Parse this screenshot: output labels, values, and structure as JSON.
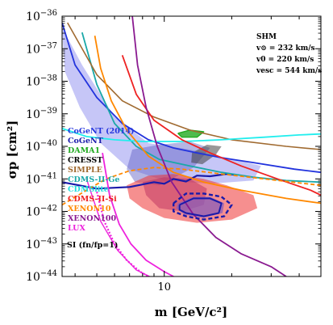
{
  "chart_data": {
    "type": "line",
    "xlabel": "m [GeV/c²]",
    "ylabel": "σp [cm²]",
    "x_scale": "log",
    "y_scale": "log",
    "xlim": [
      3.5,
      50
    ],
    "ylim": [
      1e-44,
      1e-36
    ],
    "x_tick_labels": [
      {
        "value": 10,
        "text": "10"
      }
    ],
    "y_tick_labels": [
      {
        "value": -36,
        "base": "10",
        "exp": "−36"
      },
      {
        "value": -37,
        "base": "10",
        "exp": "−37"
      },
      {
        "value": -38,
        "base": "10",
        "exp": "−38"
      },
      {
        "value": -39,
        "base": "10",
        "exp": "−39"
      },
      {
        "value": -40,
        "base": "10",
        "exp": "−40"
      },
      {
        "value": -41,
        "base": "10",
        "exp": "−41"
      },
      {
        "value": -42,
        "base": "10",
        "exp": "−42"
      },
      {
        "value": -43,
        "base": "10",
        "exp": "−43"
      },
      {
        "value": -44,
        "base": "10",
        "exp": "−44"
      }
    ],
    "annotation": {
      "title": "SHM",
      "lines": [
        "v⊙ = 232 km/s",
        "v0 = 220 km/s",
        "vesc = 544 km/s"
      ]
    },
    "footer_label": "SI (fn/fp=1)",
    "regions": [
      {
        "name": "CoGeNT (2014)",
        "color": "#8080ee",
        "opacity": 0.45,
        "points": [
          [
            3.5,
            -36.35
          ],
          [
            4.3,
            -37.5
          ],
          [
            6,
            -39.1
          ],
          [
            8.5,
            -39.9
          ],
          [
            13,
            -40.1
          ],
          [
            19,
            -40.35
          ],
          [
            27,
            -40.6
          ],
          [
            25,
            -41.05
          ],
          [
            16,
            -41.15
          ],
          [
            10,
            -41.05
          ],
          [
            7,
            -40.7
          ],
          [
            5.2,
            -39.9
          ],
          [
            4.2,
            -38.8
          ],
          [
            3.6,
            -37.7
          ]
        ]
      },
      {
        "name": "CoGeNT",
        "color": "#5a5ac0",
        "opacity": 0.45,
        "points": [
          [
            7.2,
            -40.1
          ],
          [
            9.5,
            -39.95
          ],
          [
            13,
            -39.85
          ],
          [
            16,
            -40.05
          ],
          [
            13.5,
            -40.65
          ],
          [
            9.5,
            -41.2
          ],
          [
            7.4,
            -41.1
          ],
          [
            6.8,
            -40.7
          ]
        ]
      },
      {
        "name": "DAMA1",
        "color": "#22aa22",
        "opacity": 0.8,
        "points": [
          [
            11.5,
            -39.6
          ],
          [
            13,
            -39.5
          ],
          [
            15,
            -39.55
          ],
          [
            14,
            -39.72
          ],
          [
            12,
            -39.72
          ]
        ]
      },
      {
        "name": "CDMS-II-Si",
        "color": "#ee3333",
        "opacity": 0.55,
        "points": [
          [
            6.8,
            -41.2
          ],
          [
            8.5,
            -40.9
          ],
          [
            11,
            -40.85
          ],
          [
            15,
            -41.0
          ],
          [
            19,
            -41.2
          ],
          [
            25,
            -41.5
          ],
          [
            26,
            -41.9
          ],
          [
            20,
            -42.25
          ],
          [
            14,
            -42.35
          ],
          [
            10,
            -42.2
          ],
          [
            8,
            -41.9
          ],
          [
            7,
            -41.6
          ]
        ]
      },
      {
        "name": "CDMS-II-Si",
        "color": "#bb3060",
        "opacity": 0.5,
        "points": [
          [
            8,
            -41.1
          ],
          [
            10,
            -40.95
          ],
          [
            13,
            -41.0
          ],
          [
            15.5,
            -41.3
          ],
          [
            15,
            -41.8
          ],
          [
            12,
            -42.0
          ],
          [
            9.5,
            -41.9
          ],
          [
            8.3,
            -41.5
          ]
        ]
      },
      {
        "name": "CDMS-II-Si",
        "color": "#444444",
        "opacity": 0.55,
        "points": [
          [
            13.3,
            -40.2
          ],
          [
            15.5,
            -39.95
          ],
          [
            18,
            -40.0
          ],
          [
            17,
            -40.25
          ],
          [
            14.8,
            -40.55
          ],
          [
            13.2,
            -40.5
          ]
        ]
      },
      {
        "name": "CDMS-II-Si",
        "color": "#8a5eb8",
        "opacity": 0.75,
        "points": [
          [
            11.5,
            -41.75
          ],
          [
            13.5,
            -41.55
          ],
          [
            16,
            -41.55
          ],
          [
            18.5,
            -41.75
          ],
          [
            18.2,
            -42.05
          ],
          [
            15,
            -42.2
          ],
          [
            12.3,
            -42.1
          ],
          [
            11.3,
            -41.9
          ]
        ]
      }
    ],
    "series": [
      {
        "name": "CoGeNT (2014)",
        "color": "#2233dd",
        "width": 1.8,
        "dash": "",
        "points": [
          [
            3.5,
            -36.2
          ],
          [
            4,
            -37.5
          ],
          [
            5,
            -38.5
          ],
          [
            6.5,
            -39.3
          ],
          [
            8.5,
            -39.8
          ],
          [
            11,
            -40.05
          ],
          [
            14,
            -40.2
          ],
          [
            18,
            -40.35
          ],
          [
            25,
            -40.5
          ],
          [
            38,
            -40.7
          ],
          [
            50,
            -40.8
          ]
        ]
      },
      {
        "name": "CoGeNT",
        "color": "#1a1aaa",
        "width": 2.2,
        "dash": "",
        "points": [
          [
            3.5,
            -41.1
          ],
          [
            5,
            -41.3
          ],
          [
            7,
            -41.25
          ],
          [
            9,
            -41.1
          ],
          [
            10,
            -41.15
          ],
          [
            11,
            -41.0
          ],
          [
            12.5,
            -41.08
          ],
          [
            14,
            -40.9
          ],
          [
            16,
            -40.92
          ],
          [
            19,
            -40.85
          ],
          [
            21,
            -40.88
          ]
        ]
      },
      {
        "name": "DAMA1",
        "color": "#22aa22",
        "width": 1.4,
        "dash": "",
        "points": [
          [
            11.5,
            -39.6
          ],
          [
            13,
            -39.5
          ],
          [
            15,
            -39.55
          ],
          [
            14,
            -39.72
          ],
          [
            12,
            -39.72
          ],
          [
            11.5,
            -39.6
          ]
        ]
      },
      {
        "name": "CDMS-II-Ge",
        "color": "#1aa8a8",
        "width": 1.8,
        "dash": "",
        "points": [
          [
            4.3,
            -36.5
          ],
          [
            5,
            -38.1
          ],
          [
            6,
            -39.3
          ],
          [
            7.5,
            -40.0
          ],
          [
            9.5,
            -40.4
          ],
          [
            13,
            -40.6
          ],
          [
            18,
            -40.8
          ],
          [
            25,
            -40.95
          ],
          [
            35,
            -41.05
          ],
          [
            50,
            -41.1
          ]
        ]
      },
      {
        "name": "CRESST",
        "color": "#000000",
        "width": 1.3,
        "dash": "",
        "points": [
          [
            3.5,
            -42.2
          ]
        ]
      },
      {
        "name": "SIMPLE",
        "color": "#a06a30",
        "width": 1.6,
        "dash": "",
        "points": [
          [
            3.7,
            -36.2
          ],
          [
            5,
            -37.8
          ],
          [
            6.5,
            -38.6
          ],
          [
            9,
            -39.1
          ],
          [
            13,
            -39.5
          ],
          [
            20,
            -39.8
          ],
          [
            35,
            -40.0
          ],
          [
            50,
            -40.1
          ]
        ]
      },
      {
        "name": "CDMSlite",
        "color": "#22eeee",
        "width": 1.8,
        "dash": "",
        "points": [
          [
            3.5,
            -39.45
          ],
          [
            4.5,
            -39.7
          ],
          [
            6,
            -39.8
          ],
          [
            8,
            -39.85
          ],
          [
            12,
            -39.85
          ],
          [
            18,
            -39.8
          ],
          [
            28,
            -39.72
          ],
          [
            40,
            -39.65
          ],
          [
            50,
            -39.62
          ]
        ]
      },
      {
        "name": "CDMS-II-Si",
        "color": "#ee2222",
        "width": 1.8,
        "dash": "",
        "points": [
          [
            6.5,
            -37.2
          ],
          [
            7.5,
            -38.4
          ],
          [
            9,
            -39.2
          ],
          [
            12,
            -39.8
          ],
          [
            16,
            -40.2
          ],
          [
            22,
            -40.6
          ],
          [
            32,
            -41.0
          ],
          [
            45,
            -41.35
          ],
          [
            50,
            -41.5
          ]
        ]
      },
      {
        "name": "XENON10",
        "color": "#ff8800",
        "width": 1.8,
        "dash": "",
        "points": [
          [
            4.9,
            -36.6
          ],
          [
            5.2,
            -37.6
          ],
          [
            5.8,
            -38.6
          ],
          [
            6.8,
            -39.5
          ],
          [
            8.5,
            -40.3
          ],
          [
            11,
            -40.8
          ],
          [
            15,
            -41.1
          ],
          [
            22,
            -41.35
          ],
          [
            35,
            -41.6
          ],
          [
            50,
            -41.75
          ]
        ]
      },
      {
        "name": "XENON10",
        "color": "#ff8800",
        "width": 1.8,
        "dash": "5,3",
        "points": [
          [
            3.5,
            -41.8
          ],
          [
            4.5,
            -41.35
          ],
          [
            5.5,
            -41.0
          ],
          [
            7,
            -40.75
          ],
          [
            9,
            -40.65
          ],
          [
            12,
            -40.7
          ],
          [
            18,
            -40.85
          ],
          [
            28,
            -41.0
          ],
          [
            50,
            -41.2
          ]
        ]
      },
      {
        "name": "XENON100",
        "color": "#8a1a90",
        "width": 1.8,
        "dash": "",
        "points": [
          [
            7.2,
            -36
          ],
          [
            7.6,
            -37.5
          ],
          [
            8.3,
            -38.8
          ],
          [
            9.3,
            -40
          ],
          [
            10.8,
            -41.1
          ],
          [
            13.5,
            -42.1
          ],
          [
            17,
            -42.8
          ],
          [
            22,
            -43.3
          ],
          [
            30,
            -43.7
          ],
          [
            35,
            -44
          ]
        ]
      },
      {
        "name": "LUX",
        "color": "#ee22dd",
        "width": 1.8,
        "dash": "",
        "points": [
          [
            5.3,
            -40.2
          ],
          [
            5.7,
            -41.5
          ],
          [
            6.3,
            -42.4
          ],
          [
            7.1,
            -43.0
          ],
          [
            8.3,
            -43.5
          ],
          [
            10,
            -43.85
          ],
          [
            11,
            -44
          ]
        ]
      },
      {
        "name": "LUX",
        "color": "#ee22dd",
        "width": 2.2,
        "dash": "2,2",
        "points": [
          [
            5.0,
            -41.4
          ],
          [
            5.4,
            -42.3
          ],
          [
            6,
            -43.0
          ],
          [
            6.8,
            -43.5
          ],
          [
            7.8,
            -43.85
          ],
          [
            8.5,
            -44
          ]
        ]
      },
      {
        "name": "LUX",
        "color": "#ee22dd",
        "width": 1.4,
        "dash": "",
        "points": [
          [
            4.5,
            -41.0
          ],
          [
            5.2,
            -42.3
          ],
          [
            6.2,
            -43.2
          ],
          [
            7.5,
            -43.8
          ],
          [
            8.6,
            -44
          ]
        ]
      },
      {
        "name": "CDMS-II-Si",
        "color": "#1a1aaa",
        "width": 2.4,
        "dash": "5,3",
        "points": [
          [
            11,
            -41.75
          ],
          [
            12.5,
            -41.45
          ],
          [
            15,
            -41.45
          ],
          [
            18,
            -41.55
          ],
          [
            20,
            -41.8
          ],
          [
            18.5,
            -42.15
          ],
          [
            15,
            -42.25
          ],
          [
            12.5,
            -42.15
          ],
          [
            11,
            -42.0
          ],
          [
            11,
            -41.75
          ]
        ]
      },
      {
        "name": "CDMS-II-Si",
        "color": "#1a1aaa",
        "width": 2.0,
        "dash": "",
        "points": [
          [
            11.7,
            -41.8
          ],
          [
            13.5,
            -41.6
          ],
          [
            16,
            -41.6
          ],
          [
            18,
            -41.75
          ],
          [
            17.5,
            -42.05
          ],
          [
            15,
            -42.15
          ],
          [
            12.5,
            -42.05
          ],
          [
            11.7,
            -41.95
          ],
          [
            11.7,
            -41.8
          ]
        ]
      }
    ],
    "legend": {
      "placement": "left",
      "entries": [
        {
          "label": "CoGeNT (2014)",
          "color": "#2233dd"
        },
        {
          "label": "CoGeNT",
          "color": "#1a1aaa"
        },
        {
          "label": "DAMA1",
          "color": "#22aa22"
        },
        {
          "label": "CRESST",
          "color": "#000000"
        },
        {
          "label": "SIMPLE",
          "color": "#a06a30"
        },
        {
          "label": "CDMS-II-Ge",
          "color": "#1aa8a8"
        },
        {
          "label": "CDMSlite",
          "color": "#22dddd"
        },
        {
          "label": "CDMS-II-Si",
          "color": "#ee2222"
        },
        {
          "label": "XENON10",
          "color": "#ff8800"
        },
        {
          "label": "XENON100",
          "color": "#8a1a90"
        },
        {
          "label": "LUX",
          "color": "#ee22dd"
        }
      ]
    },
    "grid": false
  }
}
